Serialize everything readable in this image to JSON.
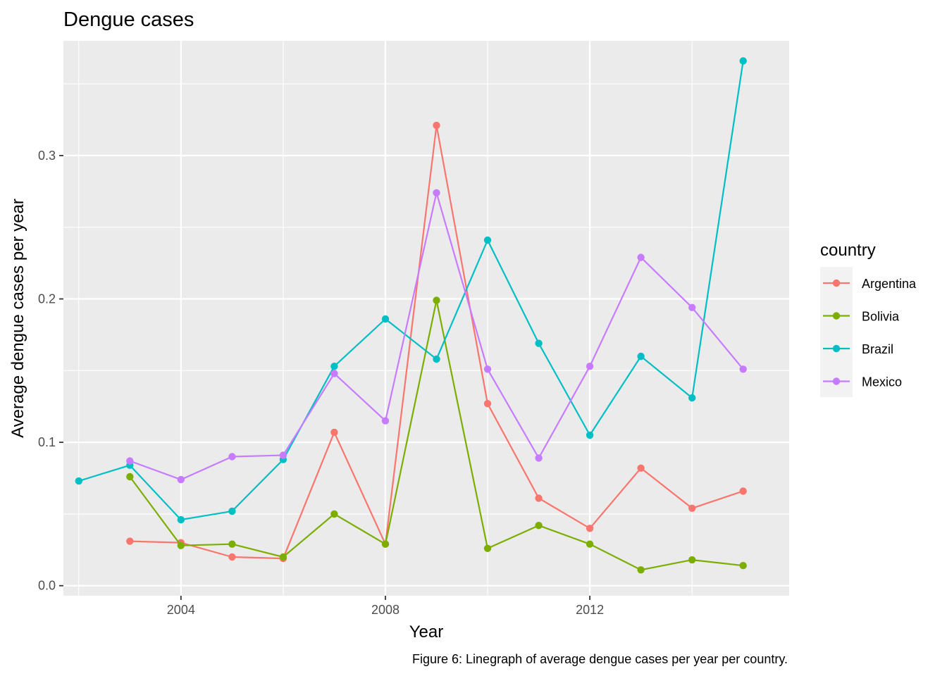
{
  "chart_data": {
    "type": "line",
    "title": "Dengue cases",
    "xlabel": "Year",
    "ylabel": "Average dengue cases per year",
    "caption": "Figure 6: Linegraph of average dengue cases per year per country.",
    "legend_title": "country",
    "legend_position": "right",
    "grid": true,
    "xlim": [
      2001.7,
      2015.9
    ],
    "ylim": [
      -0.007,
      0.38
    ],
    "x_ticks": [
      {
        "value": 2004,
        "label": "2004"
      },
      {
        "value": 2008,
        "label": "2008"
      },
      {
        "value": 2012,
        "label": "2012"
      }
    ],
    "x_minor": [
      2002,
      2006,
      2010,
      2014
    ],
    "y_ticks": [
      {
        "value": 0.0,
        "label": "0.0"
      },
      {
        "value": 0.1,
        "label": "0.1"
      },
      {
        "value": 0.2,
        "label": "0.2"
      },
      {
        "value": 0.3,
        "label": "0.3"
      }
    ],
    "y_minor": [
      0.05,
      0.15,
      0.25,
      0.35
    ],
    "series": [
      {
        "name": "Argentina",
        "color": "#F8766D",
        "x": [
          2003,
          2004,
          2005,
          2006,
          2007,
          2008,
          2009,
          2010,
          2011,
          2012,
          2013,
          2014,
          2015
        ],
        "y": [
          0.031,
          0.03,
          0.02,
          0.019,
          0.107,
          0.029,
          0.321,
          0.127,
          0.061,
          0.04,
          0.082,
          0.054,
          0.066
        ]
      },
      {
        "name": "Bolivia",
        "color": "#7CAE00",
        "x": [
          2003,
          2004,
          2005,
          2006,
          2007,
          2008,
          2009,
          2010,
          2011,
          2012,
          2013,
          2014,
          2015
        ],
        "y": [
          0.076,
          0.028,
          0.029,
          0.02,
          0.05,
          0.029,
          0.199,
          0.026,
          0.042,
          0.029,
          0.011,
          0.018,
          0.014
        ]
      },
      {
        "name": "Brazil",
        "color": "#00BFC4",
        "x": [
          2002,
          2003,
          2004,
          2005,
          2006,
          2007,
          2008,
          2009,
          2010,
          2011,
          2012,
          2013,
          2014,
          2015
        ],
        "y": [
          0.073,
          0.084,
          0.046,
          0.052,
          0.088,
          0.153,
          0.186,
          0.158,
          0.241,
          0.169,
          0.105,
          0.16,
          0.131,
          0.366
        ]
      },
      {
        "name": "Mexico",
        "color": "#C77CFF",
        "x": [
          2003,
          2004,
          2005,
          2006,
          2007,
          2008,
          2009,
          2010,
          2011,
          2012,
          2013,
          2014,
          2015
        ],
        "y": [
          0.087,
          0.074,
          0.09,
          0.091,
          0.148,
          0.115,
          0.274,
          0.151,
          0.089,
          0.153,
          0.229,
          0.194,
          0.151
        ]
      }
    ]
  }
}
